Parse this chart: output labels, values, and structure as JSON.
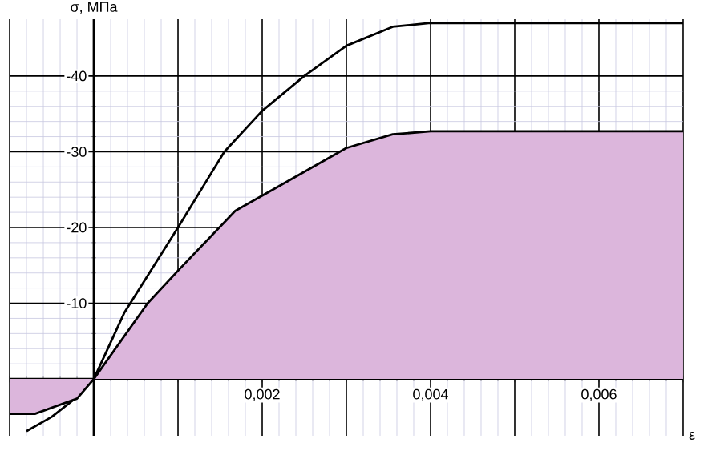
{
  "chart_data": {
    "type": "line",
    "xlabel": "ε",
    "ylabel": "σ, МПа",
    "series": [
      {
        "color": "#000000",
        "x": [
          -0.0008,
          -0.0005,
          -0.0002,
          0,
          0.00036,
          0.001,
          0.00155,
          0.002,
          0.0025,
          0.003,
          0.00355,
          0.004,
          0.007
        ],
        "values": [
          6.9,
          5,
          2.4,
          0,
          -8.7,
          -20,
          -30,
          -35.4,
          -40,
          -44,
          -46.5,
          -47,
          -47
        ]
      },
      {
        "type": "area",
        "color": "#dcb6dc",
        "x": [
          -0.001,
          -0.0007,
          -0.0002,
          0,
          0.00064,
          0.001,
          0.00168,
          0.002,
          0.003,
          0.00355,
          0.004,
          0.007
        ],
        "values": [
          4.6,
          4.6,
          2.6,
          0,
          -10,
          -14.3,
          -22.2,
          -24.2,
          -30.5,
          -32.3,
          -32.7,
          -32.7
        ]
      }
    ],
    "xlim": [
      -0.001,
      0.007
    ],
    "ylim": [
      7.5,
      -47.5
    ],
    "xticks": [
      {
        "value": -0.001,
        "label": null
      },
      {
        "value": 0,
        "label": null
      },
      {
        "value": 0.001,
        "label": null
      },
      {
        "value": 0.002,
        "label": "0,002"
      },
      {
        "value": 0.003,
        "label": null
      },
      {
        "value": 0.004,
        "label": "0,004"
      },
      {
        "value": 0.005,
        "label": null
      },
      {
        "value": 0.006,
        "label": "0,006"
      },
      {
        "value": 0.007,
        "label": null
      }
    ],
    "yticks": [
      {
        "value": 0,
        "label": null
      },
      -10,
      -20,
      -30,
      -40
    ],
    "grid": true
  }
}
